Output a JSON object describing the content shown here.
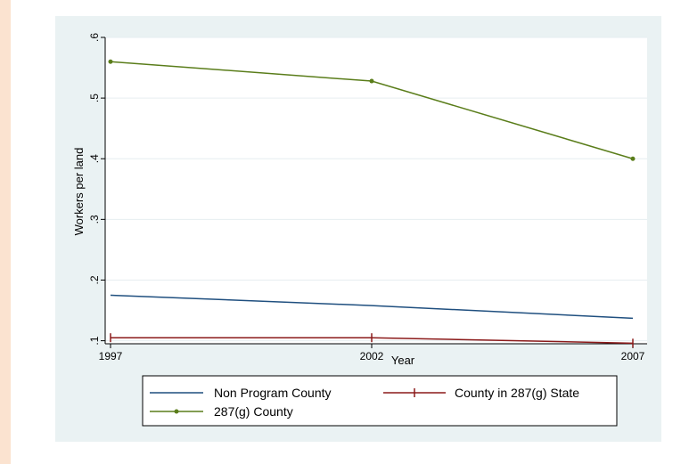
{
  "chart_data": {
    "type": "line",
    "x": [
      1997,
      2002,
      2007
    ],
    "xticks": [
      "1997",
      "2002",
      "2007"
    ],
    "yticks": [
      ".1",
      ".2",
      ".3",
      ".4",
      ".5",
      ".6"
    ],
    "ytick_values": [
      0.1,
      0.2,
      0.3,
      0.4,
      0.5,
      0.6
    ],
    "xlabel": "Year",
    "ylabel": "Workers per land",
    "xlim": [
      1997,
      2007
    ],
    "ylim": [
      0.095,
      0.6
    ],
    "grid": true,
    "legend_position": "bottom",
    "series": [
      {
        "name": "Non Program County",
        "values": [
          0.175,
          0.158,
          0.137
        ],
        "color": "#1f4f7f",
        "marker": "none"
      },
      {
        "name": "County in 287(g) State",
        "values": [
          0.105,
          0.105,
          0.096
        ],
        "color": "#8b1a1a",
        "marker": "plus"
      },
      {
        "name": "287(g) County",
        "values": [
          0.56,
          0.528,
          0.4
        ],
        "color": "#5a7d1a",
        "marker": "dot"
      }
    ]
  }
}
